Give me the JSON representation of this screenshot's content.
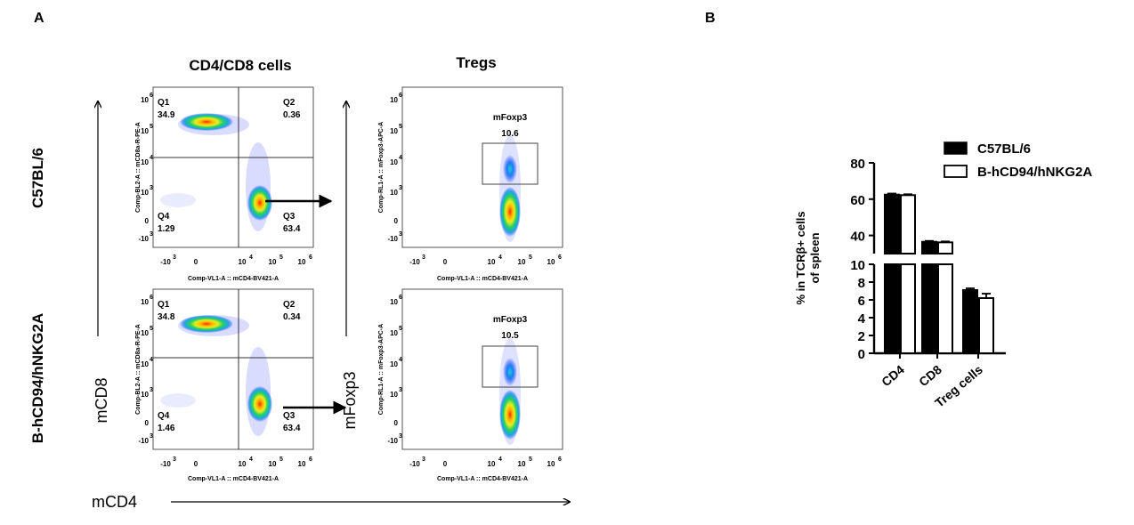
{
  "panel_a": {
    "label": "A",
    "col1_title": "CD4/CD8 cells",
    "col2_title": "Tregs",
    "row_labels": [
      "C57BL/6",
      "B-hCD94/hNKG2A"
    ],
    "axis_mcd8": "mCD8",
    "axis_mfoxp3": "mFoxp3",
    "axis_mcd4": "mCD4",
    "x_param": "Comp-VL1-A :: mCD4-BV421-A",
    "y_param_cd8": "Comp-BL2-A :: mCD8a-R-PE-A",
    "y_param_foxp3": "Comp-RL1-A :: mFoxp3-APC-A",
    "ticks": {
      "x": [
        "-10",
        "0",
        "10",
        "10",
        "10"
      ],
      "x_exp": [
        "3",
        "",
        "4",
        "5",
        "6"
      ],
      "y": [
        "10",
        "10",
        "10",
        "10",
        "0",
        "-10"
      ],
      "y_exp": [
        "6",
        "5",
        "4",
        "3",
        "",
        "3"
      ]
    },
    "quadrant_names": [
      "Q1",
      "Q2",
      "Q3",
      "Q4"
    ],
    "gate_name": "mFoxp3",
    "plots": [
      {
        "id": "cd4cd8-c57",
        "q1": "34.9",
        "q2": "0.36",
        "q3": "63.4",
        "q4": "1.29"
      },
      {
        "id": "treg-c57",
        "gate": "10.6"
      },
      {
        "id": "cd4cd8-hnkg2a",
        "q1": "34.8",
        "q2": "0.34",
        "q3": "63.4",
        "q4": "1.46"
      },
      {
        "id": "treg-hnkg2a",
        "gate": "10.5"
      }
    ]
  },
  "panel_b": {
    "label": "B",
    "legend": [
      "C57BL/6",
      "B-hCD94/hNKG2A"
    ],
    "ylabel_line1": "% in TCRβ+ cells",
    "ylabel_line2": "of spleen",
    "yticks_top": [
      "40",
      "60",
      "80"
    ],
    "yticks_bottom": [
      "0",
      "2",
      "4",
      "6",
      "8",
      "10"
    ],
    "categories": [
      "CD4",
      "CD8",
      "Treg cells"
    ]
  },
  "chart_data": {
    "type": "bar",
    "categories": [
      "CD4",
      "CD8",
      "Treg cells"
    ],
    "series": [
      {
        "name": "C57BL/6",
        "values": [
          62.5,
          36.5,
          7.1
        ],
        "errors": [
          0.6,
          0.5,
          0.2
        ],
        "fill": "#000000"
      },
      {
        "name": "B-hCD94/hNKG2A",
        "values": [
          62.2,
          36.2,
          6.2
        ],
        "errors": [
          0.5,
          0.5,
          0.5
        ],
        "fill": "#ffffff"
      }
    ],
    "ylabel": "% in TCRβ+ cells of spleen",
    "y_axis_break": {
      "lower": [
        0,
        10
      ],
      "upper": [
        30,
        80
      ]
    }
  }
}
